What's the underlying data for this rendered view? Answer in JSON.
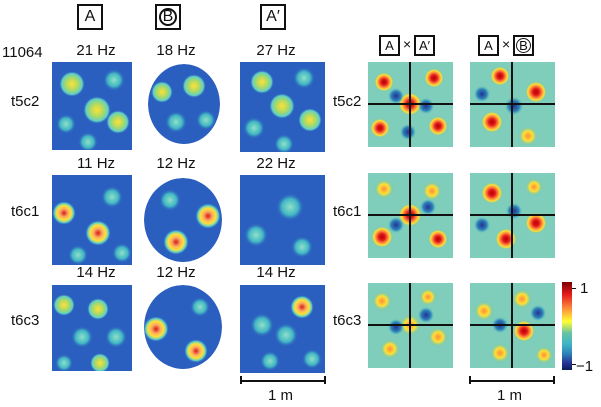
{
  "conditions": [
    {
      "letter": "A",
      "shape": "square"
    },
    {
      "letter": "B",
      "shape": "circle"
    },
    {
      "letter": "A′",
      "shape": "square"
    }
  ],
  "rat_id": "11064",
  "cells": [
    {
      "name": "t5c2",
      "rates": [
        "21 Hz",
        "18 Hz",
        "27 Hz"
      ]
    },
    {
      "name": "t6c1",
      "rates": [
        "11 Hz",
        "12 Hz",
        "22 Hz"
      ]
    },
    {
      "name": "t6c3",
      "rates": [
        "14 Hz",
        "12 Hz",
        "14 Hz"
      ]
    }
  ],
  "correlation_headers": [
    {
      "left": "A",
      "op": "×",
      "right": "A′",
      "right_shape": "square"
    },
    {
      "left": "A",
      "op": "×",
      "right": "B",
      "right_shape": "circle"
    }
  ],
  "colorbar": {
    "max_label": "1",
    "min_label": "−1",
    "colors": [
      "#7a0000",
      "#e31a1c",
      "#fd8d3c",
      "#ffff33",
      "#66c2a5",
      "#41b6c4",
      "#2c7fb8",
      "#253494",
      "#081d58"
    ]
  },
  "scalebars": [
    {
      "label": "1 m"
    },
    {
      "label": "1 m"
    }
  ],
  "map_colors": {
    "background": "#2b5fbf",
    "peak_red": "#d7191c",
    "peak_yellow": "#ffe135",
    "peak_cyan": "#5fd0c8"
  }
}
